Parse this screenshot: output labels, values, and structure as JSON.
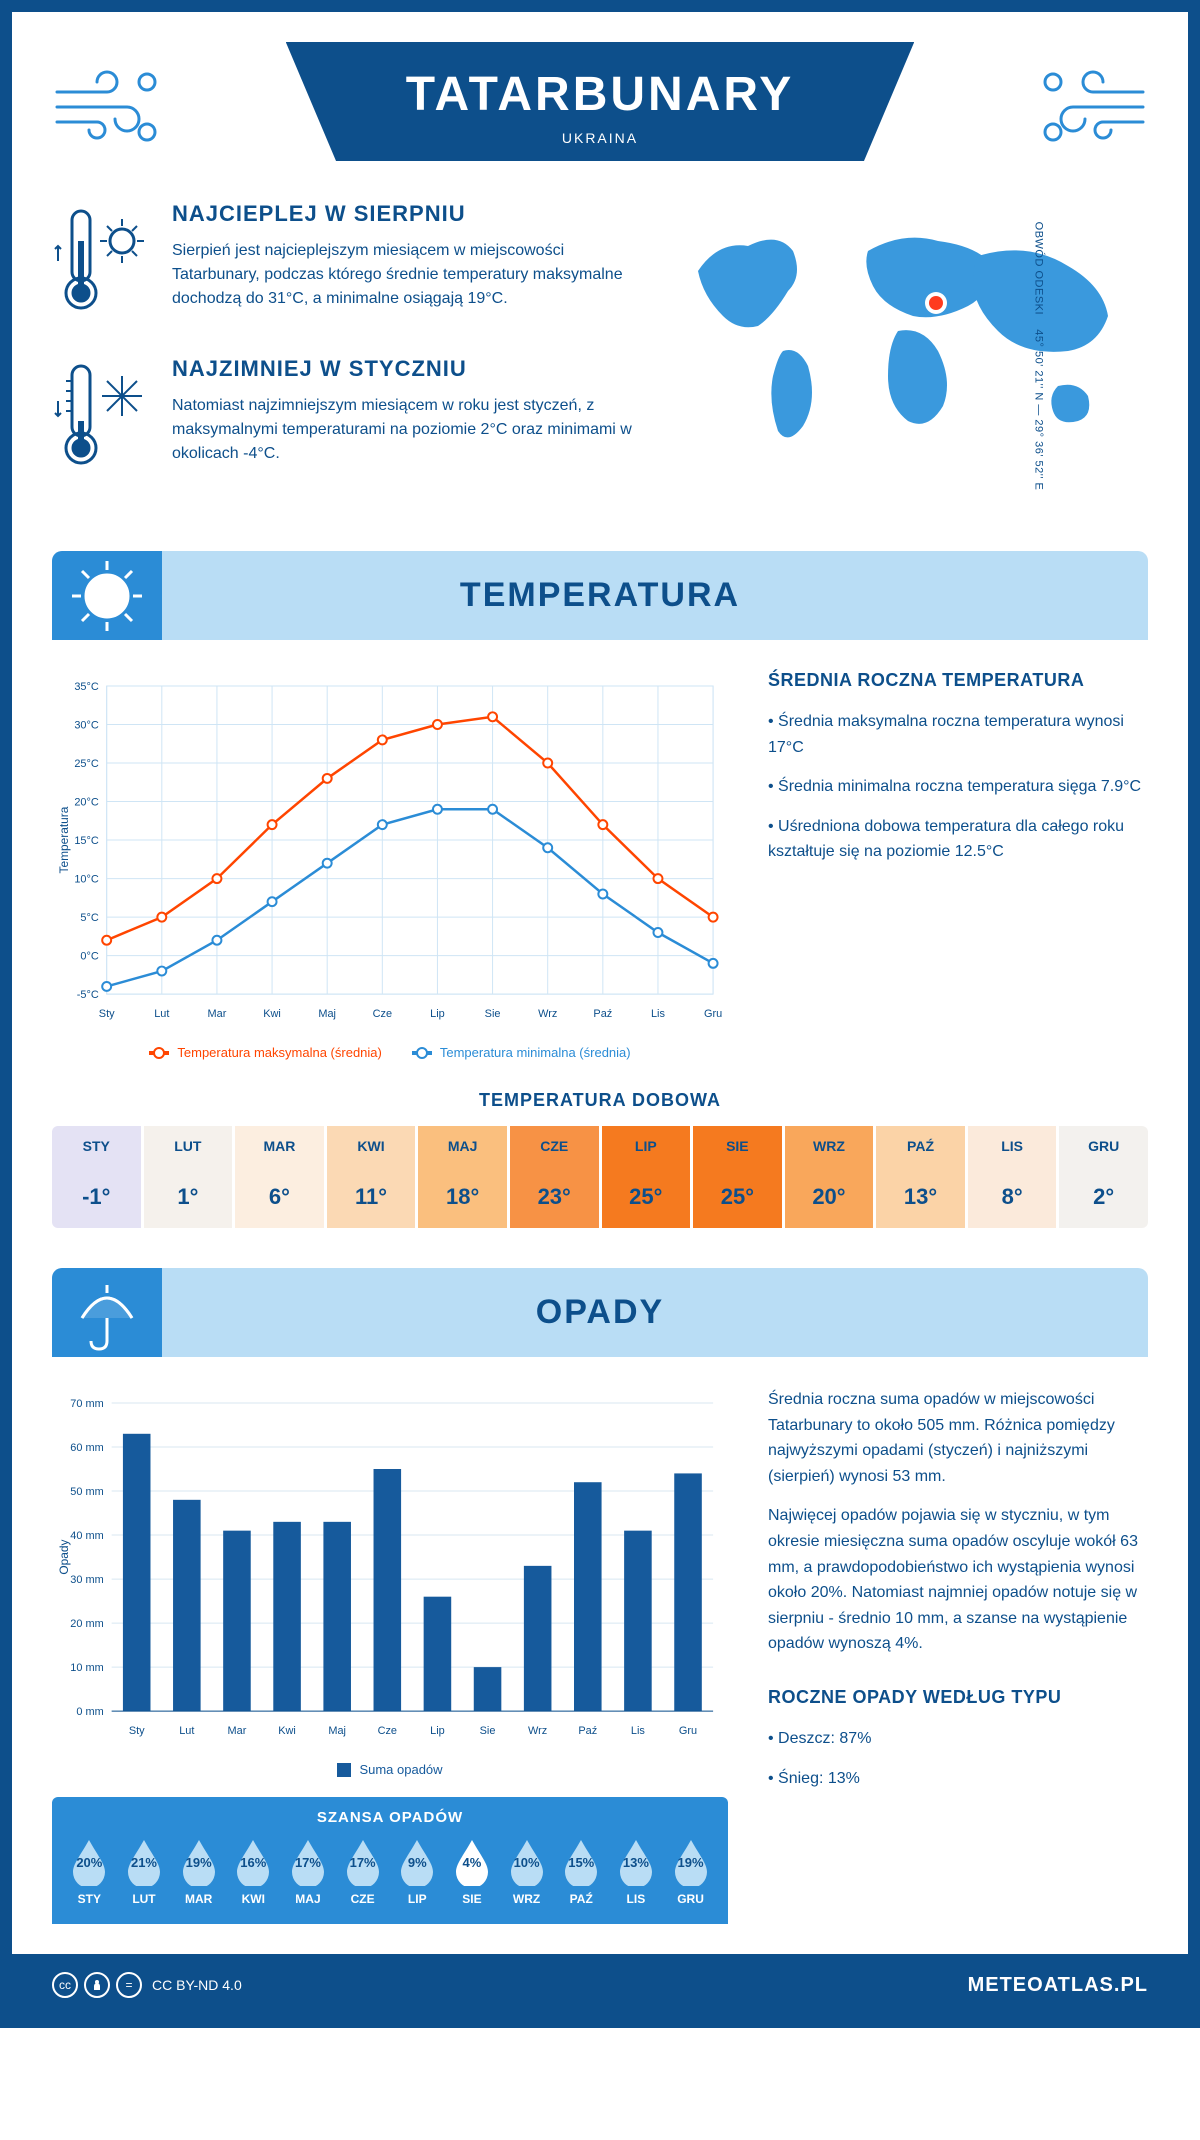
{
  "header": {
    "title": "TATARBUNARY",
    "subtitle": "UKRAINA"
  },
  "location": {
    "coords": "45° 50' 21'' N — 29° 36' 52'' E",
    "region": "OBWÓD ODESKI"
  },
  "warmest": {
    "title": "NAJCIEPLEJ W SIERPNIU",
    "text": "Sierpień jest najcieplejszym miesiącem w miejscowości Tatarbunary, podczas którego średnie temperatury maksymalne dochodzą do 31°C, a minimalne osiągają 19°C."
  },
  "coldest": {
    "title": "NAJZIMNIEJ W STYCZNIU",
    "text": "Natomiast najzimniejszym miesiącem w roku jest styczeń, z maksymalnymi temperaturami na poziomie 2°C oraz minimami w okolicach -4°C."
  },
  "temperature": {
    "section_title": "TEMPERATURA",
    "side_title": "ŚREDNIA ROCZNA TEMPERATURA",
    "bullets": [
      "• Średnia maksymalna roczna temperatura wynosi 17°C",
      "• Średnia minimalna roczna temperatura sięga 7.9°C",
      "• Uśredniona dobowa temperatura dla całego roku kształtuje się na poziomie 12.5°C"
    ],
    "chart": {
      "type": "line",
      "months": [
        "Sty",
        "Lut",
        "Mar",
        "Kwi",
        "Maj",
        "Cze",
        "Lip",
        "Sie",
        "Wrz",
        "Paź",
        "Lis",
        "Gru"
      ],
      "y_label": "Temperatura",
      "y_ticks": [
        "-5°C",
        "0°C",
        "5°C",
        "10°C",
        "15°C",
        "20°C",
        "25°C",
        "30°C",
        "35°C"
      ],
      "ylim": [
        -5,
        35
      ],
      "max_series": {
        "label": "Temperatura maksymalna (średnia)",
        "color": "#ff4500",
        "values": [
          2,
          5,
          10,
          17,
          23,
          28,
          30,
          31,
          25,
          17,
          10,
          5
        ]
      },
      "min_series": {
        "label": "Temperatura minimalna (średnia)",
        "color": "#2b8cd6",
        "values": [
          -4,
          -2,
          2,
          7,
          12,
          17,
          19,
          19,
          14,
          8,
          3,
          -1
        ]
      },
      "grid_color": "#cfe5f5",
      "background": "#ffffff"
    },
    "daily_title": "TEMPERATURA DOBOWA",
    "daily": {
      "months": [
        "STY",
        "LUT",
        "MAR",
        "KWI",
        "MAJ",
        "CZE",
        "LIP",
        "SIE",
        "WRZ",
        "PAŹ",
        "LIS",
        "GRU"
      ],
      "values": [
        "-1°",
        "1°",
        "6°",
        "11°",
        "18°",
        "23°",
        "25°",
        "25°",
        "20°",
        "13°",
        "8°",
        "2°"
      ],
      "colors": [
        "#e4e2f4",
        "#f5f1ec",
        "#fceee0",
        "#fbd9b4",
        "#fabf7e",
        "#f79245",
        "#f57a1f",
        "#f57a1f",
        "#f9a75b",
        "#fbd3a7",
        "#fbeadb",
        "#f3f1ee"
      ]
    }
  },
  "precipitation": {
    "section_title": "OPADY",
    "para1": "Średnia roczna suma opadów w miejscowości Tatarbunary to około 505 mm. Różnica pomiędzy najwyższymi opadami (styczeń) i najniższymi (sierpień) wynosi 53 mm.",
    "para2": "Najwięcej opadów pojawia się w styczniu, w tym okresie miesięczna suma opadów oscyluje wokół 63 mm, a prawdopodobieństwo ich wystąpienia wynosi około 20%. Natomiast najmniej opadów notuje się w sierpniu - średnio 10 mm, a szanse na wystąpienie opadów wynoszą 4%.",
    "by_type_title": "ROCZNE OPADY WEDŁUG TYPU",
    "by_type": [
      "• Deszcz: 87%",
      "• Śnieg: 13%"
    ],
    "chart": {
      "type": "bar",
      "months": [
        "Sty",
        "Lut",
        "Mar",
        "Kwi",
        "Maj",
        "Cze",
        "Lip",
        "Sie",
        "Wrz",
        "Paź",
        "Lis",
        "Gru"
      ],
      "y_label": "Opady",
      "y_ticks": [
        "0 mm",
        "10 mm",
        "20 mm",
        "30 mm",
        "40 mm",
        "50 mm",
        "60 mm",
        "70 mm"
      ],
      "ylim": [
        0,
        70
      ],
      "values": [
        63,
        48,
        41,
        43,
        43,
        55,
        26,
        10,
        33,
        52,
        41,
        54
      ],
      "bar_color": "#165a9c",
      "grid_color": "#d8e7f2",
      "legend": "Suma opadów"
    },
    "chance_title": "SZANSA OPADÓW",
    "chance": {
      "months": [
        "STY",
        "LUT",
        "MAR",
        "KWI",
        "MAJ",
        "CZE",
        "LIP",
        "SIE",
        "WRZ",
        "PAŹ",
        "LIS",
        "GRU"
      ],
      "values": [
        "20%",
        "21%",
        "19%",
        "16%",
        "17%",
        "17%",
        "9%",
        "4%",
        "10%",
        "15%",
        "13%",
        "19%"
      ],
      "min_index": 7,
      "drop_fill": "#b9ddf5",
      "drop_min_fill": "#ffffff"
    }
  },
  "footer": {
    "license": "CC BY-ND 4.0",
    "brand": "METEOATLAS.PL"
  },
  "colors": {
    "primary": "#0d4f8b",
    "light_blue": "#b9ddf5",
    "mid_blue": "#2b8cd6",
    "map_blue": "#3a99dd"
  }
}
